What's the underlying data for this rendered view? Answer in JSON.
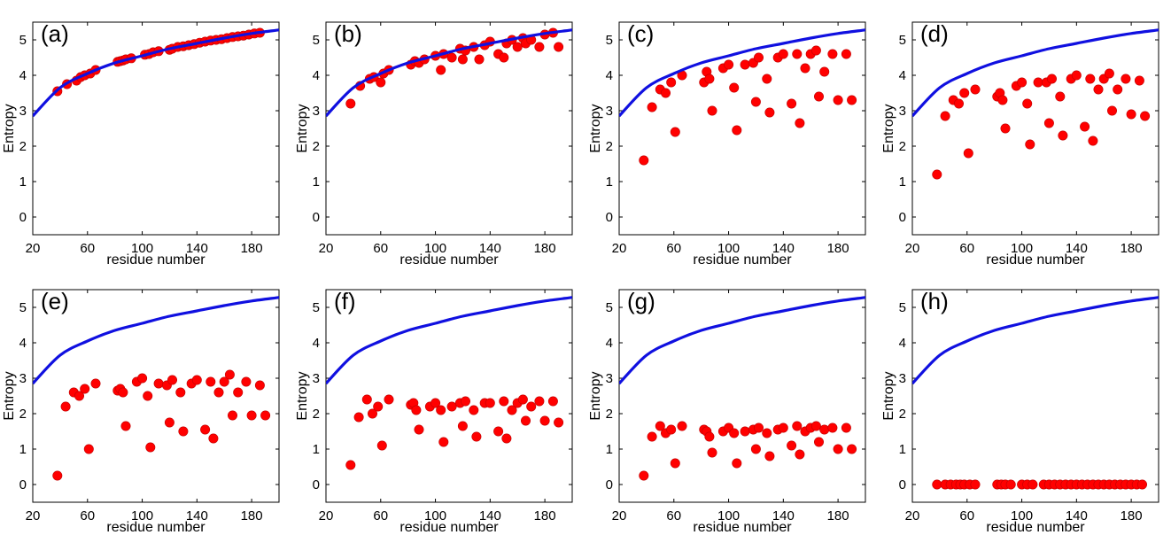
{
  "figure": {
    "background": "#ffffff"
  },
  "style": {
    "curve_color": "#1010e0",
    "point_color": "#ff0000",
    "point_edge": "#c00000"
  },
  "chart_data": [
    {
      "type": "scatter",
      "panel": "(a)",
      "ylabel": "Entropy",
      "xlabel": "residue number",
      "xlim": [
        20,
        200
      ],
      "ylim": [
        -0.5,
        5.5
      ],
      "xticks": [
        20,
        60,
        100,
        140,
        180
      ],
      "yticks": [
        0,
        1,
        2,
        3,
        4,
        5
      ],
      "grid": false,
      "curve": {
        "x": [
          20,
          40,
          60,
          80,
          100,
          120,
          140,
          160,
          180,
          200
        ],
        "y": [
          2.85,
          3.65,
          4.05,
          4.35,
          4.55,
          4.75,
          4.9,
          5.05,
          5.18,
          5.28
        ]
      },
      "points": {
        "x": [
          38,
          45,
          52,
          55,
          58,
          62,
          66,
          82,
          84,
          86,
          88,
          92,
          102,
          105,
          108,
          112,
          120,
          122,
          126,
          130,
          134,
          138,
          142,
          146,
          150,
          154,
          158,
          162,
          166,
          170,
          174,
          178,
          182,
          186
        ],
        "y": [
          3.55,
          3.75,
          3.85,
          3.95,
          4.0,
          4.05,
          4.15,
          4.38,
          4.4,
          4.42,
          4.45,
          4.48,
          4.58,
          4.6,
          4.65,
          4.68,
          4.72,
          4.75,
          4.8,
          4.82,
          4.85,
          4.88,
          4.92,
          4.95,
          4.98,
          5.0,
          5.02,
          5.05,
          5.08,
          5.1,
          5.12,
          5.15,
          5.18,
          5.2
        ]
      }
    },
    {
      "type": "scatter",
      "panel": "(b)",
      "ylabel": "Entropy",
      "xlabel": "residue number",
      "xlim": [
        20,
        200
      ],
      "ylim": [
        -0.5,
        5.5
      ],
      "xticks": [
        20,
        60,
        100,
        140,
        180
      ],
      "yticks": [
        0,
        1,
        2,
        3,
        4,
        5
      ],
      "grid": false,
      "curve": {
        "x": [
          20,
          40,
          60,
          80,
          100,
          120,
          140,
          160,
          180,
          200
        ],
        "y": [
          2.85,
          3.65,
          4.05,
          4.35,
          4.55,
          4.75,
          4.9,
          5.05,
          5.18,
          5.28
        ]
      },
      "points": {
        "x": [
          38,
          45,
          52,
          55,
          60,
          62,
          66,
          82,
          85,
          88,
          92,
          100,
          104,
          106,
          112,
          118,
          120,
          122,
          128,
          132,
          136,
          140,
          146,
          150,
          152,
          156,
          160,
          164,
          166,
          170,
          176,
          180,
          186,
          190
        ],
        "y": [
          3.2,
          3.7,
          3.9,
          3.95,
          3.8,
          4.05,
          4.15,
          4.3,
          4.4,
          4.35,
          4.45,
          4.55,
          4.15,
          4.6,
          4.5,
          4.75,
          4.45,
          4.7,
          4.8,
          4.45,
          4.85,
          4.95,
          4.6,
          4.5,
          4.9,
          5.0,
          4.8,
          5.05,
          4.9,
          5.0,
          4.8,
          5.15,
          5.2,
          4.8
        ]
      }
    },
    {
      "type": "scatter",
      "panel": "(c)",
      "ylabel": "Entropy",
      "xlabel": "residue number",
      "xlim": [
        20,
        200
      ],
      "ylim": [
        -0.5,
        5.5
      ],
      "xticks": [
        20,
        60,
        100,
        140,
        180
      ],
      "yticks": [
        0,
        1,
        2,
        3,
        4,
        5
      ],
      "grid": false,
      "curve": {
        "x": [
          20,
          40,
          60,
          80,
          100,
          120,
          140,
          160,
          180,
          200
        ],
        "y": [
          2.85,
          3.65,
          4.05,
          4.35,
          4.55,
          4.75,
          4.9,
          5.05,
          5.18,
          5.28
        ]
      },
      "points": {
        "x": [
          38,
          44,
          50,
          54,
          58,
          61,
          66,
          82,
          84,
          86,
          88,
          96,
          100,
          104,
          106,
          112,
          118,
          120,
          122,
          128,
          130,
          136,
          140,
          146,
          150,
          152,
          156,
          160,
          164,
          166,
          170,
          176,
          180,
          186,
          190
        ],
        "y": [
          1.6,
          3.1,
          3.6,
          3.5,
          3.8,
          2.4,
          4.0,
          3.8,
          4.1,
          3.9,
          3.0,
          4.2,
          4.3,
          3.65,
          2.45,
          4.3,
          4.35,
          3.25,
          4.5,
          3.9,
          2.95,
          4.5,
          4.6,
          3.2,
          4.6,
          2.65,
          4.2,
          4.6,
          4.7,
          3.4,
          4.1,
          4.6,
          3.3,
          4.6,
          3.3
        ]
      }
    },
    {
      "type": "scatter",
      "panel": "(d)",
      "ylabel": "Entropy",
      "xlabel": "residue number",
      "xlim": [
        20,
        200
      ],
      "ylim": [
        -0.5,
        5.5
      ],
      "xticks": [
        20,
        60,
        100,
        140,
        180
      ],
      "yticks": [
        0,
        1,
        2,
        3,
        4,
        5
      ],
      "grid": false,
      "curve": {
        "x": [
          20,
          40,
          60,
          80,
          100,
          120,
          140,
          160,
          180,
          200
        ],
        "y": [
          2.85,
          3.65,
          4.05,
          4.35,
          4.55,
          4.75,
          4.9,
          5.05,
          5.18,
          5.28
        ]
      },
      "points": {
        "x": [
          38,
          44,
          50,
          54,
          58,
          61,
          66,
          82,
          84,
          86,
          88,
          96,
          100,
          104,
          106,
          112,
          118,
          120,
          122,
          128,
          130,
          136,
          140,
          146,
          150,
          152,
          156,
          160,
          164,
          166,
          170,
          176,
          180,
          186,
          190
        ],
        "y": [
          1.2,
          2.85,
          3.3,
          3.2,
          3.5,
          1.8,
          3.6,
          3.4,
          3.5,
          3.3,
          2.5,
          3.7,
          3.8,
          3.2,
          2.05,
          3.8,
          3.8,
          2.65,
          3.9,
          3.4,
          2.3,
          3.9,
          4.0,
          2.55,
          3.9,
          2.15,
          3.6,
          3.9,
          4.05,
          3.0,
          3.6,
          3.9,
          2.9,
          3.85,
          2.85
        ]
      }
    },
    {
      "type": "scatter",
      "panel": "(e)",
      "ylabel": "Entropy",
      "xlabel": "residue number",
      "xlim": [
        20,
        200
      ],
      "ylim": [
        -0.5,
        5.5
      ],
      "xticks": [
        20,
        60,
        100,
        140,
        180
      ],
      "yticks": [
        0,
        1,
        2,
        3,
        4,
        5
      ],
      "grid": false,
      "curve": {
        "x": [
          20,
          40,
          60,
          80,
          100,
          120,
          140,
          160,
          180,
          200
        ],
        "y": [
          2.85,
          3.65,
          4.05,
          4.35,
          4.55,
          4.75,
          4.9,
          5.05,
          5.18,
          5.28
        ]
      },
      "points": {
        "x": [
          38,
          44,
          50,
          54,
          58,
          61,
          66,
          82,
          84,
          86,
          88,
          96,
          100,
          104,
          106,
          112,
          118,
          120,
          122,
          128,
          130,
          136,
          140,
          146,
          150,
          152,
          156,
          160,
          164,
          166,
          170,
          176,
          180,
          186,
          190
        ],
        "y": [
          0.25,
          2.2,
          2.6,
          2.5,
          2.7,
          1.0,
          2.85,
          2.65,
          2.7,
          2.6,
          1.65,
          2.9,
          3.0,
          2.5,
          1.05,
          2.85,
          2.8,
          1.75,
          2.95,
          2.6,
          1.5,
          2.85,
          2.95,
          1.55,
          2.9,
          1.3,
          2.6,
          2.9,
          3.1,
          1.95,
          2.6,
          2.9,
          1.95,
          2.8,
          1.95
        ]
      }
    },
    {
      "type": "scatter",
      "panel": "(f)",
      "ylabel": "Entropy",
      "xlabel": "residue number",
      "xlim": [
        20,
        200
      ],
      "ylim": [
        -0.5,
        5.5
      ],
      "xticks": [
        20,
        60,
        100,
        140,
        180
      ],
      "yticks": [
        0,
        1,
        2,
        3,
        4,
        5
      ],
      "grid": false,
      "curve": {
        "x": [
          20,
          40,
          60,
          80,
          100,
          120,
          140,
          160,
          180,
          200
        ],
        "y": [
          2.85,
          3.65,
          4.05,
          4.35,
          4.55,
          4.75,
          4.9,
          5.05,
          5.18,
          5.28
        ]
      },
      "points": {
        "x": [
          38,
          44,
          50,
          54,
          58,
          61,
          66,
          82,
          84,
          86,
          88,
          96,
          100,
          104,
          106,
          112,
          118,
          120,
          122,
          128,
          130,
          136,
          140,
          146,
          150,
          152,
          156,
          160,
          164,
          166,
          170,
          176,
          180,
          186,
          190
        ],
        "y": [
          0.55,
          1.9,
          2.4,
          2.0,
          2.2,
          1.1,
          2.4,
          2.25,
          2.3,
          2.1,
          1.55,
          2.2,
          2.3,
          2.1,
          1.2,
          2.2,
          2.3,
          1.65,
          2.35,
          2.1,
          1.35,
          2.3,
          2.3,
          1.5,
          2.35,
          1.3,
          2.1,
          2.3,
          2.4,
          1.8,
          2.2,
          2.35,
          1.8,
          2.35,
          1.75
        ]
      }
    },
    {
      "type": "scatter",
      "panel": "(g)",
      "ylabel": "Entropy",
      "xlabel": "residue number",
      "xlim": [
        20,
        200
      ],
      "ylim": [
        -0.5,
        5.5
      ],
      "xticks": [
        20,
        60,
        100,
        140,
        180
      ],
      "yticks": [
        0,
        1,
        2,
        3,
        4,
        5
      ],
      "grid": false,
      "curve": {
        "x": [
          20,
          40,
          60,
          80,
          100,
          120,
          140,
          160,
          180,
          200
        ],
        "y": [
          2.85,
          3.65,
          4.05,
          4.35,
          4.55,
          4.75,
          4.9,
          5.05,
          5.18,
          5.28
        ]
      },
      "points": {
        "x": [
          38,
          44,
          50,
          54,
          58,
          61,
          66,
          82,
          84,
          86,
          88,
          96,
          100,
          104,
          106,
          112,
          118,
          120,
          122,
          128,
          130,
          136,
          140,
          146,
          150,
          152,
          156,
          160,
          164,
          166,
          170,
          176,
          180,
          186,
          190
        ],
        "y": [
          0.25,
          1.35,
          1.65,
          1.45,
          1.55,
          0.6,
          1.65,
          1.55,
          1.5,
          1.35,
          0.9,
          1.5,
          1.6,
          1.45,
          0.6,
          1.5,
          1.55,
          1.0,
          1.6,
          1.45,
          0.8,
          1.55,
          1.6,
          1.1,
          1.65,
          0.85,
          1.5,
          1.6,
          1.65,
          1.2,
          1.55,
          1.6,
          1.0,
          1.6,
          1.0
        ]
      }
    },
    {
      "type": "scatter",
      "panel": "(h)",
      "ylabel": "Entropy",
      "xlabel": "residue number",
      "xlim": [
        20,
        200
      ],
      "ylim": [
        -0.5,
        5.5
      ],
      "xticks": [
        20,
        60,
        100,
        140,
        180
      ],
      "yticks": [
        0,
        1,
        2,
        3,
        4,
        5
      ],
      "grid": false,
      "curve": {
        "x": [
          20,
          40,
          60,
          80,
          100,
          120,
          140,
          160,
          180,
          200
        ],
        "y": [
          2.85,
          3.65,
          4.05,
          4.35,
          4.55,
          4.75,
          4.9,
          5.05,
          5.18,
          5.28
        ]
      },
      "points": {
        "x": [
          38,
          44,
          48,
          52,
          55,
          58,
          62,
          66,
          82,
          85,
          88,
          92,
          100,
          104,
          108,
          116,
          120,
          124,
          128,
          132,
          136,
          140,
          144,
          148,
          152,
          156,
          160,
          164,
          168,
          172,
          176,
          180,
          184,
          188
        ],
        "y": [
          0,
          0,
          0,
          0,
          0,
          0,
          0,
          0,
          0,
          0,
          0,
          0,
          0,
          0,
          0,
          0,
          0,
          0,
          0,
          0,
          0,
          0,
          0,
          0,
          0,
          0,
          0,
          0,
          0,
          0,
          0,
          0,
          0,
          0
        ]
      }
    }
  ]
}
